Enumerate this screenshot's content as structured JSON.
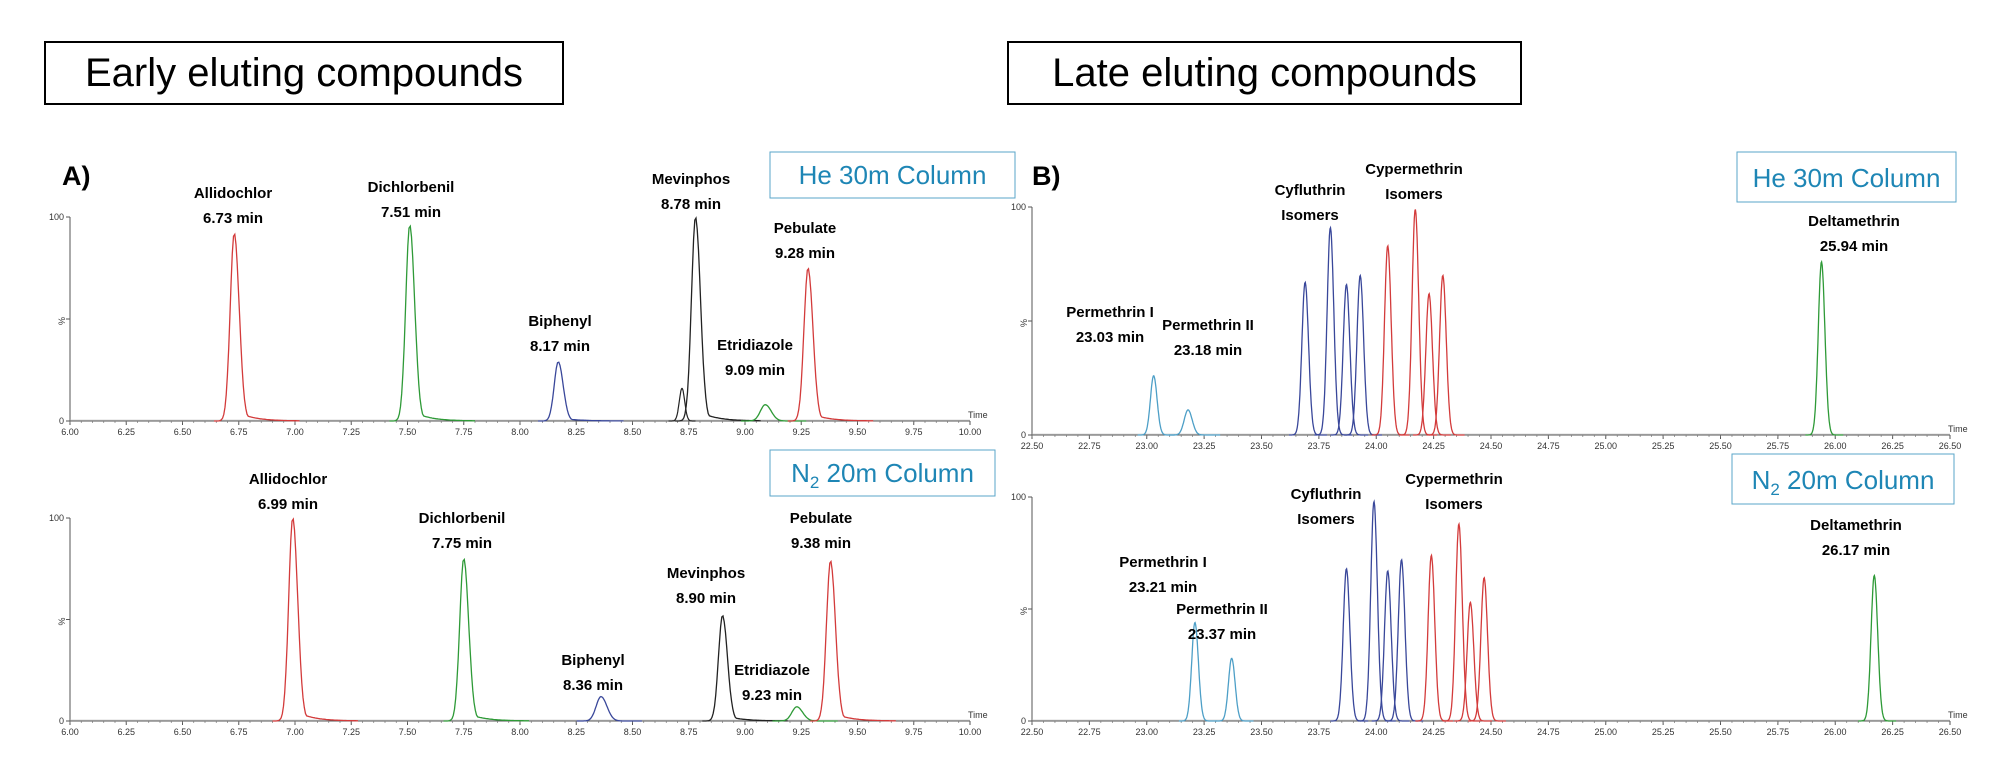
{
  "sections": {
    "early": "Early eluting compounds",
    "late": "Late eluting compounds"
  },
  "colors": {
    "red": "#d33b3b",
    "green": "#2e9a37",
    "blue": "#39479a",
    "black": "#222222",
    "teal": "#4d9fc7",
    "column_label": "#1e86b5"
  },
  "chart_data": [
    {
      "type": "line",
      "panel": "A)",
      "column_label": "He 30m Column",
      "xlabel": "Time",
      "ylabel": "%",
      "xlim": [
        6.0,
        10.0
      ],
      "ylim": [
        0,
        100
      ],
      "xticks": [
        "6.00",
        "6.25",
        "6.50",
        "6.75",
        "7.00",
        "7.25",
        "7.50",
        "7.75",
        "8.00",
        "8.25",
        "8.50",
        "8.75",
        "9.00",
        "9.25",
        "9.50",
        "9.75",
        "10.00"
      ],
      "yticks": [
        "0",
        "%",
        "100"
      ],
      "peaks": [
        {
          "name": "Allidochlor",
          "rt_label": "6.73 min",
          "rt": 6.73,
          "height": 92,
          "color": "red"
        },
        {
          "name": "Dichlorbenil",
          "rt_label": "7.51 min",
          "rt": 7.51,
          "height": 96,
          "color": "green"
        },
        {
          "name": "Biphenyl",
          "rt_label": "8.17 min",
          "rt": 8.17,
          "height": 29,
          "color": "blue"
        },
        {
          "name": "Mevinphos",
          "rt_label": "8.78 min",
          "rt": 8.78,
          "height": 100,
          "color": "black"
        },
        {
          "name": "Etridiazole",
          "rt_label": "9.09 min",
          "rt": 9.09,
          "height": 8,
          "color": "green"
        },
        {
          "name": "Pebulate",
          "rt_label": "9.28 min",
          "rt": 9.28,
          "height": 75,
          "color": "red"
        }
      ]
    },
    {
      "type": "line",
      "panel": "",
      "column_label": "N",
      "column_label_sub": "2",
      "column_label_rest": " 20m Column",
      "xlabel": "Time",
      "ylabel": "%",
      "xlim": [
        6.0,
        10.0
      ],
      "ylim": [
        0,
        100
      ],
      "xticks": [
        "6.00",
        "6.25",
        "6.50",
        "6.75",
        "7.00",
        "7.25",
        "7.50",
        "7.75",
        "8.00",
        "8.25",
        "8.50",
        "8.75",
        "9.00",
        "9.25",
        "9.50",
        "9.75",
        "10.00"
      ],
      "yticks": [
        "0",
        "%",
        "100"
      ],
      "peaks": [
        {
          "name": "Allidochlor",
          "rt_label": "6.99 min",
          "rt": 6.99,
          "height": 100,
          "color": "red"
        },
        {
          "name": "Dichlorbenil",
          "rt_label": "7.75 min",
          "rt": 7.75,
          "height": 80,
          "color": "green"
        },
        {
          "name": "Biphenyl",
          "rt_label": "8.36 min",
          "rt": 8.36,
          "height": 12,
          "color": "blue"
        },
        {
          "name": "Mevinphos",
          "rt_label": "8.90 min",
          "rt": 8.9,
          "height": 52,
          "color": "black"
        },
        {
          "name": "Etridiazole",
          "rt_label": "9.23 min",
          "rt": 9.23,
          "height": 7,
          "color": "green"
        },
        {
          "name": "Pebulate",
          "rt_label": "9.38 min",
          "rt": 9.38,
          "height": 79,
          "color": "red"
        }
      ]
    },
    {
      "type": "line",
      "panel": "B)",
      "column_label": "He 30m Column",
      "xlabel": "Time",
      "ylabel": "%",
      "xlim": [
        22.5,
        26.5
      ],
      "ylim": [
        0,
        100
      ],
      "xticks": [
        "22.50",
        "22.75",
        "23.00",
        "23.25",
        "23.50",
        "23.75",
        "24.00",
        "24.25",
        "24.50",
        "24.75",
        "25.00",
        "25.25",
        "25.50",
        "25.75",
        "26.00",
        "26.25",
        "26.50"
      ],
      "yticks": [
        "0",
        "%",
        "100"
      ],
      "peaks": [
        {
          "name": "Permethrin I",
          "rt_label": "23.03 min",
          "rt": 23.03,
          "height": 26,
          "color": "teal"
        },
        {
          "name": "Permethrin II",
          "rt_label": "23.18 min",
          "rt": 23.18,
          "height": 11,
          "color": "teal"
        },
        {
          "name": "Cyfluthrin Isomers",
          "rt": 23.69,
          "height": 67,
          "color": "blue"
        },
        {
          "name": "Cyfluthrin Isomers",
          "rt": 23.8,
          "height": 91,
          "color": "blue"
        },
        {
          "name": "Cyfluthrin Isomers",
          "rt": 23.87,
          "height": 66,
          "color": "blue"
        },
        {
          "name": "Cyfluthrin Isomers",
          "rt": 23.93,
          "height": 70,
          "color": "blue"
        },
        {
          "name": "Cypermethrin Isomers",
          "rt": 24.05,
          "height": 83,
          "color": "red"
        },
        {
          "name": "Cypermethrin Isomers",
          "rt": 24.17,
          "height": 99,
          "color": "red"
        },
        {
          "name": "Cypermethrin Isomers",
          "rt": 24.23,
          "height": 62,
          "color": "red"
        },
        {
          "name": "Cypermethrin Isomers",
          "rt": 24.29,
          "height": 70,
          "color": "red"
        },
        {
          "name": "Deltamethrin",
          "rt_label": "25.94 min",
          "rt": 25.94,
          "height": 76,
          "color": "green"
        }
      ],
      "labels": [
        {
          "lines": [
            "Permethrin I",
            "23.03 min"
          ]
        },
        {
          "lines": [
            "Permethrin II",
            "23.18 min"
          ]
        },
        {
          "lines": [
            "Cyfluthrin",
            "Isomers"
          ]
        },
        {
          "lines": [
            "Cypermethrin",
            "Isomers"
          ]
        },
        {
          "lines": [
            "Deltamethrin",
            "25.94 min"
          ]
        }
      ]
    },
    {
      "type": "line",
      "panel": "",
      "column_label": "N",
      "column_label_sub": "2",
      "column_label_rest": " 20m Column",
      "xlabel": "Time",
      "ylabel": "%",
      "xlim": [
        22.5,
        26.5
      ],
      "ylim": [
        0,
        100
      ],
      "xticks": [
        "22.50",
        "22.75",
        "23.00",
        "23.25",
        "23.50",
        "23.75",
        "24.00",
        "24.25",
        "24.50",
        "24.75",
        "25.00",
        "25.25",
        "25.50",
        "25.75",
        "26.00",
        "26.25",
        "26.50"
      ],
      "yticks": [
        "0",
        "%",
        "100"
      ],
      "peaks": [
        {
          "name": "Permethrin I",
          "rt_label": "23.21 min",
          "rt": 23.21,
          "height": 44,
          "color": "teal"
        },
        {
          "name": "Permethrin II",
          "rt_label": "23.37 min",
          "rt": 23.37,
          "height": 28,
          "color": "teal"
        },
        {
          "name": "Cyfluthrin Isomers",
          "rt": 23.87,
          "height": 68,
          "color": "blue"
        },
        {
          "name": "Cyfluthrin Isomers",
          "rt": 23.99,
          "height": 98,
          "color": "blue"
        },
        {
          "name": "Cyfluthrin Isomers",
          "rt": 24.05,
          "height": 67,
          "color": "blue"
        },
        {
          "name": "Cyfluthrin Isomers",
          "rt": 24.11,
          "height": 72,
          "color": "blue"
        },
        {
          "name": "Cypermethrin Isomers",
          "rt": 24.24,
          "height": 74,
          "color": "red"
        },
        {
          "name": "Cypermethrin Isomers",
          "rt": 24.36,
          "height": 88,
          "color": "red"
        },
        {
          "name": "Cypermethrin Isomers",
          "rt": 24.41,
          "height": 53,
          "color": "red"
        },
        {
          "name": "Cypermethrin Isomers",
          "rt": 24.47,
          "height": 64,
          "color": "red"
        },
        {
          "name": "Deltamethrin",
          "rt_label": "26.17 min",
          "rt": 26.17,
          "height": 65,
          "color": "green"
        }
      ],
      "labels": [
        {
          "lines": [
            "Permethrin I",
            "23.21 min"
          ]
        },
        {
          "lines": [
            "Permethrin II",
            "23.37 min"
          ]
        },
        {
          "lines": [
            "Cyfluthrin",
            "Isomers"
          ]
        },
        {
          "lines": [
            "Cypermethrin",
            "Isomers"
          ]
        },
        {
          "lines": [
            "Deltamethrin",
            "26.17 min"
          ]
        }
      ]
    }
  ]
}
